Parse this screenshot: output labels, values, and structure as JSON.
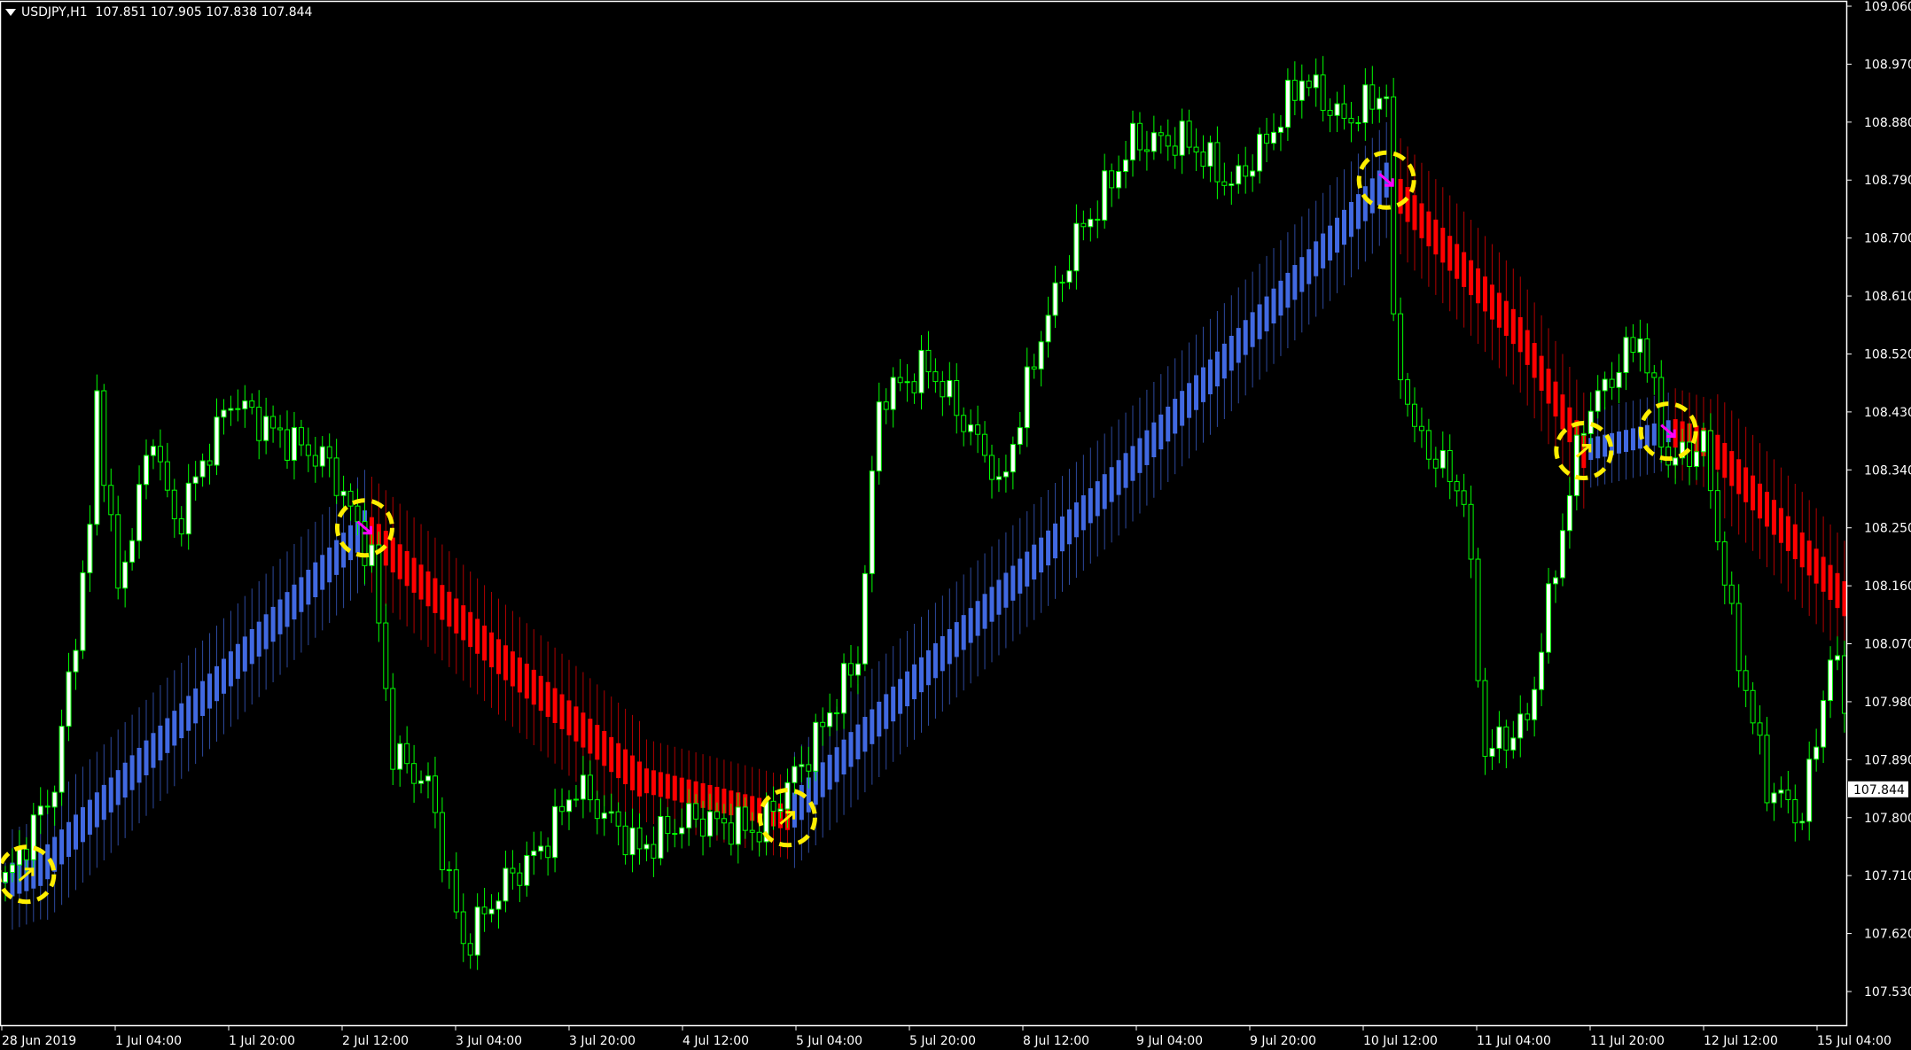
{
  "header": {
    "symbol": "USDJPY,H1",
    "ohlc": "107.851 107.905 107.838 107.844"
  },
  "colors": {
    "background": "#000000",
    "candle": "#00ff00",
    "bull_fill": "#ffffff",
    "bear_fill": "#000000",
    "ma_up": "#4169e1",
    "ma_down": "#ff0000",
    "signal_circle": "#ffee00",
    "arrow_up": "#ffee00",
    "arrow_down": "#ff00ff",
    "axis": "#ffffff"
  },
  "chart_data": {
    "type": "candlestick",
    "timeframe": "H1",
    "ylim": [
      107.5,
      109.06
    ],
    "y_ticks": [
      "109.060",
      "108.970",
      "108.880",
      "108.790",
      "108.700",
      "108.610",
      "108.520",
      "108.430",
      "108.340",
      "108.250",
      "108.160",
      "108.070",
      "107.980",
      "107.890",
      "107.800",
      "107.710",
      "107.620",
      "107.530"
    ],
    "x_ticks": [
      "28 Jun 2019",
      "1 Jul 04:00",
      "1 Jul 20:00",
      "2 Jul 12:00",
      "3 Jul 04:00",
      "3 Jul 20:00",
      "4 Jul 12:00",
      "5 Jul 04:00",
      "5 Jul 20:00",
      "8 Jul 12:00",
      "9 Jul 04:00",
      "9 Jul 20:00",
      "10 Jul 12:00",
      "11 Jul 04:00",
      "11 Jul 20:00",
      "12 Jul 12:00",
      "15 Jul 04:00"
    ],
    "current_price": "107.844",
    "price_keypoints": [
      [
        0,
        107.7
      ],
      [
        7,
        107.85
      ],
      [
        12,
        108.25
      ],
      [
        13,
        108.45
      ],
      [
        16,
        108.15
      ],
      [
        21,
        108.4
      ],
      [
        24,
        108.25
      ],
      [
        32,
        108.45
      ],
      [
        38,
        108.4
      ],
      [
        46,
        108.35
      ],
      [
        52,
        108.2
      ],
      [
        55,
        107.9
      ],
      [
        60,
        107.85
      ],
      [
        65,
        107.6
      ],
      [
        71,
        107.7
      ],
      [
        76,
        107.75
      ],
      [
        81,
        107.85
      ],
      [
        90,
        107.75
      ],
      [
        97,
        107.8
      ],
      [
        107,
        107.78
      ],
      [
        114,
        107.9
      ],
      [
        121,
        108.05
      ],
      [
        124,
        108.45
      ],
      [
        131,
        108.5
      ],
      [
        140,
        108.35
      ],
      [
        141,
        108.3
      ],
      [
        147,
        108.55
      ],
      [
        152,
        108.7
      ],
      [
        155,
        108.75
      ],
      [
        160,
        108.85
      ],
      [
        168,
        108.85
      ],
      [
        174,
        108.78
      ],
      [
        179,
        108.85
      ],
      [
        184,
        108.95
      ],
      [
        190,
        108.88
      ],
      [
        196,
        108.93
      ],
      [
        197,
        108.55
      ],
      [
        200,
        108.4
      ],
      [
        207,
        108.3
      ],
      [
        210,
        107.9
      ],
      [
        216,
        107.95
      ],
      [
        221,
        108.25
      ],
      [
        224,
        108.42
      ],
      [
        232,
        108.55
      ],
      [
        236,
        108.35
      ],
      [
        241,
        108.38
      ],
      [
        245,
        108.1
      ],
      [
        250,
        107.85
      ],
      [
        255,
        107.8
      ],
      [
        259,
        108.05
      ],
      [
        261,
        107.99
      ]
    ],
    "ma_keypoints": [
      [
        0,
        107.7
      ],
      [
        5,
        107.72
      ],
      [
        51,
        108.25
      ],
      [
        70,
        108.05
      ],
      [
        90,
        107.86
      ],
      [
        111,
        107.8
      ],
      [
        128,
        108.0
      ],
      [
        160,
        108.35
      ],
      [
        196,
        108.79
      ],
      [
        215,
        108.55
      ],
      [
        224,
        108.37
      ],
      [
        236,
        108.4
      ],
      [
        242,
        108.38
      ],
      [
        261,
        108.14
      ]
    ],
    "signals": [
      {
        "bar": 3,
        "direction": "up"
      },
      {
        "bar": 51,
        "direction": "down"
      },
      {
        "bar": 111,
        "direction": "up"
      },
      {
        "bar": 196,
        "direction": "down"
      },
      {
        "bar": 224,
        "direction": "up"
      },
      {
        "bar": 236,
        "direction": "down"
      }
    ]
  }
}
